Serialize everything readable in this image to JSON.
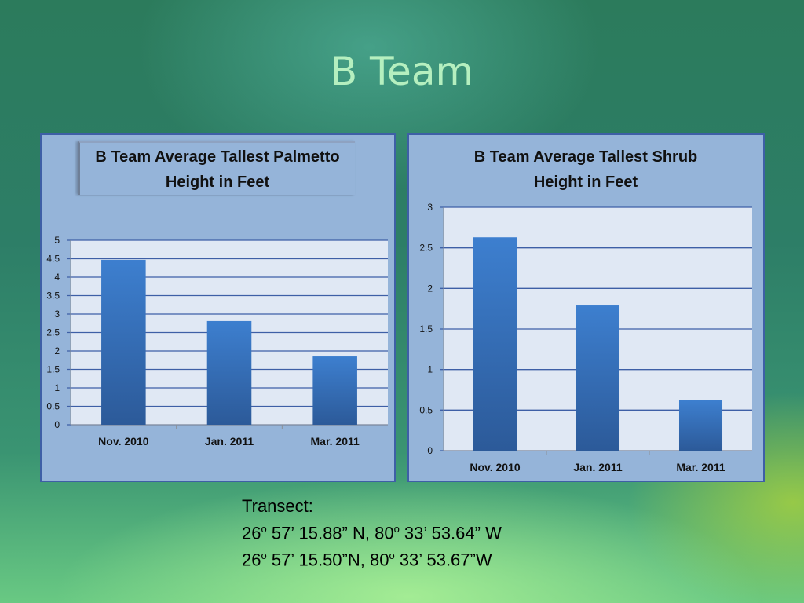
{
  "slide": {
    "title": "B Team",
    "transect_label": "Transect:",
    "coordinates": [
      {
        "lat_deg": "26",
        "lat_rest": " 57’ 15.88” N, ",
        "lon_deg": "80",
        "lon_rest": " 33’ 53.64” W"
      },
      {
        "lat_deg": "26",
        "lat_rest": " 57’ 15.50”N, ",
        "lon_deg": "80",
        "lon_rest": " 33’ 53.67”W"
      }
    ],
    "degree_mark": "o"
  },
  "colors": {
    "bar_top": "#3d7fcf",
    "bar_bottom": "#2c5a99",
    "plot_bg": "#e0e8f4",
    "gridline": "#3e5fa6",
    "panel_bg": "#95b4d9"
  },
  "chart_data": [
    {
      "type": "bar",
      "title": "B Team Average Tallest Palmetto Height in Feet",
      "title_lines": [
        "B Team Average Tallest Palmetto",
        "Height in Feet"
      ],
      "categories": [
        "Nov. 2010",
        "Jan. 2011",
        "Mar. 2011"
      ],
      "values": [
        4.47,
        2.81,
        1.85
      ],
      "ylim": [
        0,
        5
      ],
      "yticks": [
        "0",
        "0.5",
        "1",
        "1.5",
        "2",
        "2.5",
        "3",
        "3.5",
        "4",
        "4.5",
        "5"
      ],
      "grid": true,
      "xlabel": "",
      "ylabel": ""
    },
    {
      "type": "bar",
      "title": "B Team Average Tallest Shrub Height in Feet",
      "title_lines": [
        "B Team Average Tallest Shrub",
        "Height in Feet"
      ],
      "categories": [
        "Nov. 2010",
        "Jan. 2011",
        "Mar. 2011"
      ],
      "values": [
        2.63,
        1.79,
        0.62
      ],
      "ylim": [
        0,
        3
      ],
      "yticks": [
        "0",
        "0.5",
        "1",
        "1.5",
        "2",
        "2.5",
        "3"
      ],
      "grid": true,
      "xlabel": "",
      "ylabel": ""
    }
  ]
}
